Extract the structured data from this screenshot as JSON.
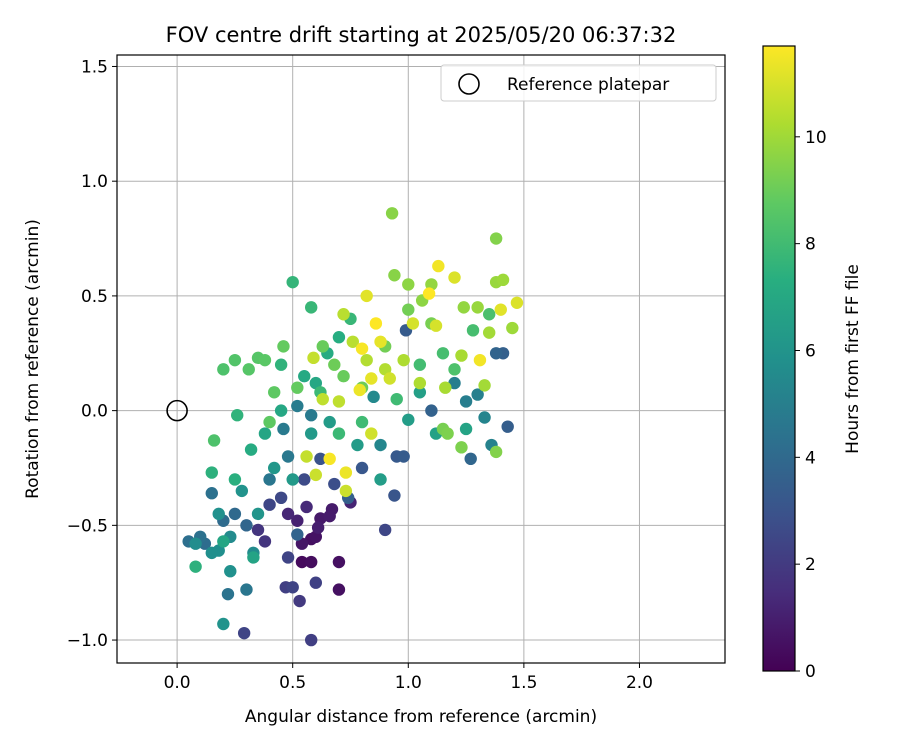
{
  "chart_data": {
    "type": "scatter",
    "title": "FOV centre drift starting at 2025/05/20 06:37:32",
    "xlabel": "Angular distance from reference (arcmin)",
    "ylabel": "Rotation from reference (arcmin)",
    "xlim": [
      -0.26,
      2.37
    ],
    "ylim": [
      -1.1,
      1.55
    ],
    "xticks": [
      0.0,
      0.5,
      1.0,
      1.5,
      2.0
    ],
    "xtick_labels": [
      "0.0",
      "0.5",
      "1.0",
      "1.5",
      "2.0"
    ],
    "yticks": [
      -1.0,
      -0.5,
      0.0,
      0.5,
      1.0,
      1.5
    ],
    "ytick_labels": [
      "−1.0",
      "−0.5",
      "0.0",
      "0.5",
      "1.0",
      "1.5"
    ],
    "grid": true,
    "legend": {
      "placement": "top-right",
      "entries": [
        "Reference platepar"
      ]
    },
    "reference_point": {
      "x": 0.0,
      "y": 0.0
    },
    "colorbar": {
      "label": "Hours from first FF file",
      "colormap": "viridis",
      "range": [
        0,
        11.7
      ],
      "ticks": [
        0,
        2,
        4,
        6,
        8,
        10
      ],
      "tick_labels": [
        "0",
        "2",
        "4",
        "6",
        "8",
        "10"
      ]
    },
    "points": [
      {
        "x": 0.54,
        "y": -0.66,
        "h": 0.3
      },
      {
        "x": 0.58,
        "y": -0.56,
        "h": 0.5
      },
      {
        "x": 0.6,
        "y": -0.55,
        "h": 0.6
      },
      {
        "x": 0.58,
        "y": -0.66,
        "h": 0.4
      },
      {
        "x": 0.7,
        "y": -0.66,
        "h": 0.5
      },
      {
        "x": 0.7,
        "y": -0.78,
        "h": 0.5
      },
      {
        "x": 0.62,
        "y": -0.47,
        "h": 0.8
      },
      {
        "x": 0.67,
        "y": -0.43,
        "h": 0.9
      },
      {
        "x": 0.54,
        "y": -0.58,
        "h": 0.7
      },
      {
        "x": 0.61,
        "y": -0.51,
        "h": 1.0
      },
      {
        "x": 0.52,
        "y": -0.48,
        "h": 1.1
      },
      {
        "x": 0.66,
        "y": -0.46,
        "h": 0.9
      },
      {
        "x": 0.75,
        "y": -0.4,
        "h": 1.2
      },
      {
        "x": 0.56,
        "y": -0.42,
        "h": 1.4
      },
      {
        "x": 0.48,
        "y": -0.45,
        "h": 1.3
      },
      {
        "x": 0.38,
        "y": -0.57,
        "h": 1.8
      },
      {
        "x": 0.35,
        "y": -0.52,
        "h": 1.8
      },
      {
        "x": 0.47,
        "y": -0.77,
        "h": 2.2
      },
      {
        "x": 0.5,
        "y": -0.77,
        "h": 2.4
      },
      {
        "x": 0.53,
        "y": -0.83,
        "h": 2.0
      },
      {
        "x": 0.58,
        "y": -1.0,
        "h": 2.2
      },
      {
        "x": 0.6,
        "y": -0.75,
        "h": 2.3
      },
      {
        "x": 0.29,
        "y": -0.97,
        "h": 2.4
      },
      {
        "x": 0.48,
        "y": -0.64,
        "h": 2.4
      },
      {
        "x": 0.9,
        "y": -0.52,
        "h": 2.5
      },
      {
        "x": 0.4,
        "y": -0.41,
        "h": 2.5
      },
      {
        "x": 0.45,
        "y": -0.38,
        "h": 2.6
      },
      {
        "x": 0.55,
        "y": -0.3,
        "h": 2.7
      },
      {
        "x": 0.68,
        "y": -0.32,
        "h": 2.8
      },
      {
        "x": 0.62,
        "y": -0.21,
        "h": 3.0
      },
      {
        "x": 0.94,
        "y": -0.37,
        "h": 3.1
      },
      {
        "x": 0.8,
        "y": -0.25,
        "h": 3.2
      },
      {
        "x": 0.95,
        "y": -0.2,
        "h": 3.3
      },
      {
        "x": 0.98,
        "y": -0.2,
        "h": 3.4
      },
      {
        "x": 1.43,
        "y": -0.07,
        "h": 3.5
      },
      {
        "x": 1.41,
        "y": 0.25,
        "h": 3.6
      },
      {
        "x": 1.38,
        "y": 0.25,
        "h": 3.8
      },
      {
        "x": 1.27,
        "y": -0.21,
        "h": 3.9
      },
      {
        "x": 0.99,
        "y": 0.35,
        "h": 3.4
      },
      {
        "x": 1.1,
        "y": 0.0,
        "h": 3.7
      },
      {
        "x": 0.74,
        "y": -0.38,
        "h": 3.6
      },
      {
        "x": 0.52,
        "y": -0.54,
        "h": 3.8
      },
      {
        "x": 0.3,
        "y": -0.5,
        "h": 3.9
      },
      {
        "x": 0.25,
        "y": -0.45,
        "h": 4.0
      },
      {
        "x": 0.2,
        "y": -0.48,
        "h": 4.1
      },
      {
        "x": 0.12,
        "y": -0.58,
        "h": 4.2
      },
      {
        "x": 0.05,
        "y": -0.57,
        "h": 4.3
      },
      {
        "x": 0.1,
        "y": -0.55,
        "h": 4.4
      },
      {
        "x": 0.15,
        "y": -0.36,
        "h": 4.4
      },
      {
        "x": 0.22,
        "y": -0.8,
        "h": 4.5
      },
      {
        "x": 0.3,
        "y": -0.78,
        "h": 4.6
      },
      {
        "x": 0.4,
        "y": -0.3,
        "h": 4.6
      },
      {
        "x": 0.48,
        "y": -0.2,
        "h": 4.7
      },
      {
        "x": 0.46,
        "y": -0.08,
        "h": 4.8
      },
      {
        "x": 0.58,
        "y": -0.02,
        "h": 4.8
      },
      {
        "x": 0.52,
        "y": 0.02,
        "h": 4.9
      },
      {
        "x": 1.2,
        "y": 0.12,
        "h": 5.0
      },
      {
        "x": 1.25,
        "y": 0.04,
        "h": 5.0
      },
      {
        "x": 1.3,
        "y": 0.07,
        "h": 5.1
      },
      {
        "x": 1.36,
        "y": -0.15,
        "h": 5.2
      },
      {
        "x": 1.33,
        "y": -0.03,
        "h": 5.3
      },
      {
        "x": 0.88,
        "y": -0.15,
        "h": 5.4
      },
      {
        "x": 0.85,
        "y": 0.06,
        "h": 5.5
      },
      {
        "x": 0.33,
        "y": -0.62,
        "h": 5.6
      },
      {
        "x": 0.23,
        "y": -0.55,
        "h": 5.6
      },
      {
        "x": 0.18,
        "y": -0.61,
        "h": 5.8
      },
      {
        "x": 0.23,
        "y": -0.7,
        "h": 5.9
      },
      {
        "x": 0.2,
        "y": -0.93,
        "h": 6.0
      },
      {
        "x": 0.15,
        "y": -0.62,
        "h": 5.8
      },
      {
        "x": 0.08,
        "y": -0.58,
        "h": 5.7
      },
      {
        "x": 0.18,
        "y": -0.45,
        "h": 5.9
      },
      {
        "x": 0.28,
        "y": -0.35,
        "h": 6.0
      },
      {
        "x": 0.35,
        "y": -0.45,
        "h": 6.1
      },
      {
        "x": 0.42,
        "y": -0.25,
        "h": 6.2
      },
      {
        "x": 0.5,
        "y": -0.3,
        "h": 6.3
      },
      {
        "x": 0.58,
        "y": -0.1,
        "h": 6.3
      },
      {
        "x": 0.66,
        "y": -0.05,
        "h": 6.4
      },
      {
        "x": 0.78,
        "y": -0.15,
        "h": 6.4
      },
      {
        "x": 0.88,
        "y": -0.3,
        "h": 6.5
      },
      {
        "x": 1.0,
        "y": -0.04,
        "h": 6.5
      },
      {
        "x": 1.05,
        "y": 0.08,
        "h": 6.6
      },
      {
        "x": 1.12,
        "y": -0.1,
        "h": 6.7
      },
      {
        "x": 1.25,
        "y": -0.08,
        "h": 6.8
      },
      {
        "x": 0.33,
        "y": -0.64,
        "h": 6.8
      },
      {
        "x": 0.2,
        "y": -0.57,
        "h": 6.9
      },
      {
        "x": 0.38,
        "y": -0.1,
        "h": 6.9
      },
      {
        "x": 0.45,
        "y": 0.0,
        "h": 7.0
      },
      {
        "x": 0.6,
        "y": 0.12,
        "h": 7.0
      },
      {
        "x": 0.55,
        "y": 0.15,
        "h": 7.1
      },
      {
        "x": 0.65,
        "y": 0.25,
        "h": 7.2
      },
      {
        "x": 0.7,
        "y": 0.32,
        "h": 7.3
      },
      {
        "x": 0.32,
        "y": -0.17,
        "h": 7.2
      },
      {
        "x": 0.25,
        "y": -0.3,
        "h": 7.4
      },
      {
        "x": 0.15,
        "y": -0.27,
        "h": 7.5
      },
      {
        "x": 0.08,
        "y": -0.68,
        "h": 7.5
      },
      {
        "x": 0.26,
        "y": -0.02,
        "h": 7.6
      },
      {
        "x": 0.45,
        "y": 0.2,
        "h": 7.6
      },
      {
        "x": 0.5,
        "y": 0.56,
        "h": 7.7
      },
      {
        "x": 0.58,
        "y": 0.45,
        "h": 7.8
      },
      {
        "x": 0.75,
        "y": 0.4,
        "h": 7.8
      },
      {
        "x": 0.62,
        "y": 0.08,
        "h": 7.9
      },
      {
        "x": 0.7,
        "y": -0.1,
        "h": 7.9
      },
      {
        "x": 0.8,
        "y": -0.05,
        "h": 8.0
      },
      {
        "x": 0.95,
        "y": 0.05,
        "h": 8.0
      },
      {
        "x": 1.05,
        "y": 0.2,
        "h": 8.1
      },
      {
        "x": 1.15,
        "y": 0.25,
        "h": 8.2
      },
      {
        "x": 1.28,
        "y": 0.35,
        "h": 8.2
      },
      {
        "x": 1.35,
        "y": 0.42,
        "h": 8.3
      },
      {
        "x": 1.2,
        "y": 0.18,
        "h": 8.4
      },
      {
        "x": 0.16,
        "y": -0.13,
        "h": 8.4
      },
      {
        "x": 0.2,
        "y": 0.18,
        "h": 8.4
      },
      {
        "x": 0.25,
        "y": 0.22,
        "h": 8.5
      },
      {
        "x": 0.35,
        "y": 0.23,
        "h": 8.6
      },
      {
        "x": 0.31,
        "y": 0.18,
        "h": 8.6
      },
      {
        "x": 0.38,
        "y": 0.22,
        "h": 8.7
      },
      {
        "x": 0.4,
        "y": -0.05,
        "h": 8.8
      },
      {
        "x": 0.42,
        "y": 0.08,
        "h": 8.8
      },
      {
        "x": 0.52,
        "y": 0.1,
        "h": 8.9
      },
      {
        "x": 0.46,
        "y": 0.28,
        "h": 8.9
      },
      {
        "x": 0.63,
        "y": 0.28,
        "h": 9.0
      },
      {
        "x": 0.72,
        "y": 0.15,
        "h": 9.0
      },
      {
        "x": 0.68,
        "y": 0.2,
        "h": 9.1
      },
      {
        "x": 0.8,
        "y": 0.1,
        "h": 9.1
      },
      {
        "x": 0.9,
        "y": 0.28,
        "h": 9.2
      },
      {
        "x": 1.0,
        "y": 0.44,
        "h": 9.2
      },
      {
        "x": 1.1,
        "y": 0.38,
        "h": 9.3
      },
      {
        "x": 1.15,
        "y": -0.08,
        "h": 9.3
      },
      {
        "x": 1.17,
        "y": -0.1,
        "h": 9.4
      },
      {
        "x": 1.23,
        "y": -0.16,
        "h": 9.4
      },
      {
        "x": 1.38,
        "y": -0.18,
        "h": 9.5
      },
      {
        "x": 1.38,
        "y": 0.75,
        "h": 9.5
      },
      {
        "x": 0.93,
        "y": 0.86,
        "h": 9.6
      },
      {
        "x": 0.94,
        "y": 0.59,
        "h": 9.6
      },
      {
        "x": 1.0,
        "y": 0.55,
        "h": 9.7
      },
      {
        "x": 1.06,
        "y": 0.48,
        "h": 9.7
      },
      {
        "x": 1.1,
        "y": 0.55,
        "h": 9.8
      },
      {
        "x": 1.24,
        "y": 0.45,
        "h": 9.8
      },
      {
        "x": 1.3,
        "y": 0.45,
        "h": 9.9
      },
      {
        "x": 1.38,
        "y": 0.56,
        "h": 9.9
      },
      {
        "x": 1.41,
        "y": 0.57,
        "h": 10.0
      },
      {
        "x": 1.45,
        "y": 0.36,
        "h": 10.0
      },
      {
        "x": 1.35,
        "y": 0.34,
        "h": 10.1
      },
      {
        "x": 1.33,
        "y": 0.11,
        "h": 10.1
      },
      {
        "x": 1.23,
        "y": 0.24,
        "h": 10.2
      },
      {
        "x": 1.16,
        "y": 0.1,
        "h": 10.2
      },
      {
        "x": 1.05,
        "y": 0.12,
        "h": 10.3
      },
      {
        "x": 0.98,
        "y": 0.22,
        "h": 10.3
      },
      {
        "x": 0.9,
        "y": 0.18,
        "h": 10.4
      },
      {
        "x": 0.82,
        "y": 0.22,
        "h": 10.4
      },
      {
        "x": 0.76,
        "y": 0.3,
        "h": 10.5
      },
      {
        "x": 0.72,
        "y": 0.42,
        "h": 10.5
      },
      {
        "x": 0.7,
        "y": 0.04,
        "h": 10.6
      },
      {
        "x": 0.63,
        "y": 0.05,
        "h": 10.6
      },
      {
        "x": 0.59,
        "y": 0.23,
        "h": 10.7
      },
      {
        "x": 0.56,
        "y": -0.2,
        "h": 10.7
      },
      {
        "x": 0.6,
        "y": -0.28,
        "h": 10.8
      },
      {
        "x": 0.73,
        "y": -0.35,
        "h": 10.8
      },
      {
        "x": 0.84,
        "y": -0.1,
        "h": 10.9
      },
      {
        "x": 0.92,
        "y": 0.14,
        "h": 10.9
      },
      {
        "x": 1.02,
        "y": 0.38,
        "h": 11.0
      },
      {
        "x": 1.12,
        "y": 0.37,
        "h": 11.0
      },
      {
        "x": 1.2,
        "y": 0.58,
        "h": 11.1
      },
      {
        "x": 1.47,
        "y": 0.47,
        "h": 11.1
      },
      {
        "x": 1.4,
        "y": 0.44,
        "h": 11.2
      },
      {
        "x": 0.82,
        "y": 0.5,
        "h": 11.2
      },
      {
        "x": 0.88,
        "y": 0.3,
        "h": 11.3
      },
      {
        "x": 0.84,
        "y": 0.14,
        "h": 11.3
      },
      {
        "x": 0.79,
        "y": 0.09,
        "h": 11.4
      },
      {
        "x": 0.73,
        "y": -0.27,
        "h": 11.4
      },
      {
        "x": 1.13,
        "y": 0.63,
        "h": 11.5
      },
      {
        "x": 1.31,
        "y": 0.22,
        "h": 11.5
      },
      {
        "x": 0.66,
        "y": -0.21,
        "h": 11.6
      },
      {
        "x": 0.8,
        "y": 0.27,
        "h": 11.6
      },
      {
        "x": 1.09,
        "y": 0.51,
        "h": 11.7
      },
      {
        "x": 0.86,
        "y": 0.38,
        "h": 11.7
      }
    ]
  }
}
